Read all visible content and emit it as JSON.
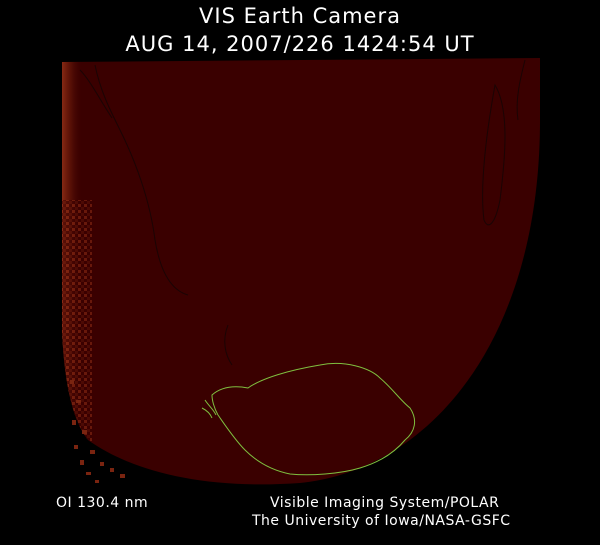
{
  "header": {
    "title": "VIS Earth Camera",
    "timestamp": "AUG 14, 2007/226 1424:54 UT"
  },
  "footer": {
    "filter": "OI  130.4 nm",
    "instrument": "Visible Imaging System/POLAR",
    "institution": "The University of Iowa/NASA-GSFC"
  },
  "colors": {
    "background": "#000000",
    "earth_disk": "#3a0000",
    "dayglow": "#8a2a12",
    "coastline": "#1a0404",
    "antarctica_outline": "#7fbf3f"
  }
}
